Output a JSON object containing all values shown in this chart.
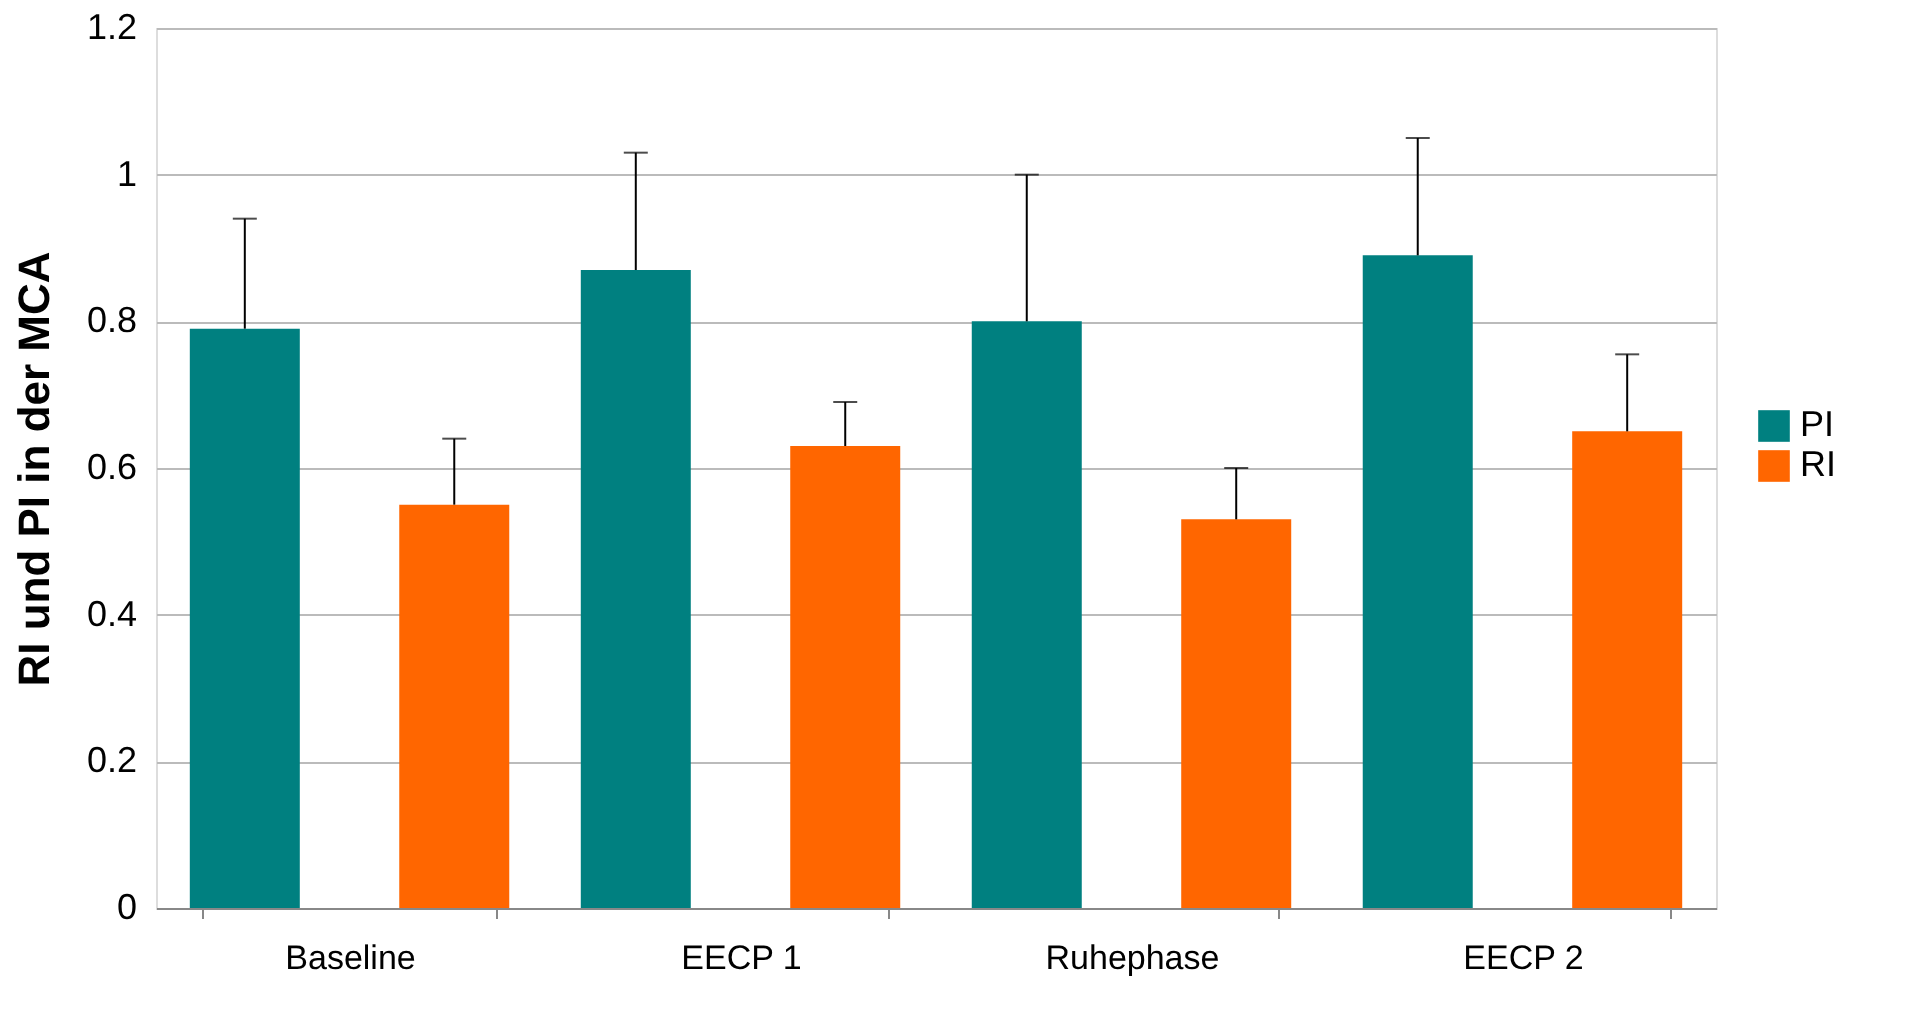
{
  "chart_data": {
    "type": "bar",
    "ylabel": "RI und PI in der MCA",
    "categories": [
      "Baseline",
      "EECP 1",
      "Ruhephase",
      "EECP 2"
    ],
    "series": [
      {
        "name": "PI",
        "color": "#008080",
        "values": [
          0.79,
          0.87,
          0.8,
          0.89
        ],
        "errors": [
          [
            0.79,
            0.94
          ],
          [
            0.87,
            1.03
          ],
          [
            0.8,
            1.0
          ],
          [
            0.89,
            1.05
          ]
        ]
      },
      {
        "name": "RI",
        "color": "#ff6600",
        "values": [
          0.55,
          0.63,
          0.53,
          0.65
        ],
        "errors": [
          [
            0.55,
            0.64
          ],
          [
            0.63,
            0.69
          ],
          [
            0.53,
            0.6
          ],
          [
            0.65,
            0.755
          ]
        ]
      }
    ],
    "ylim": [
      0,
      1.2
    ],
    "yticks": [
      0,
      0.2,
      0.4,
      0.6,
      0.8,
      1,
      1.2
    ],
    "grid": "y",
    "legend": "right"
  }
}
